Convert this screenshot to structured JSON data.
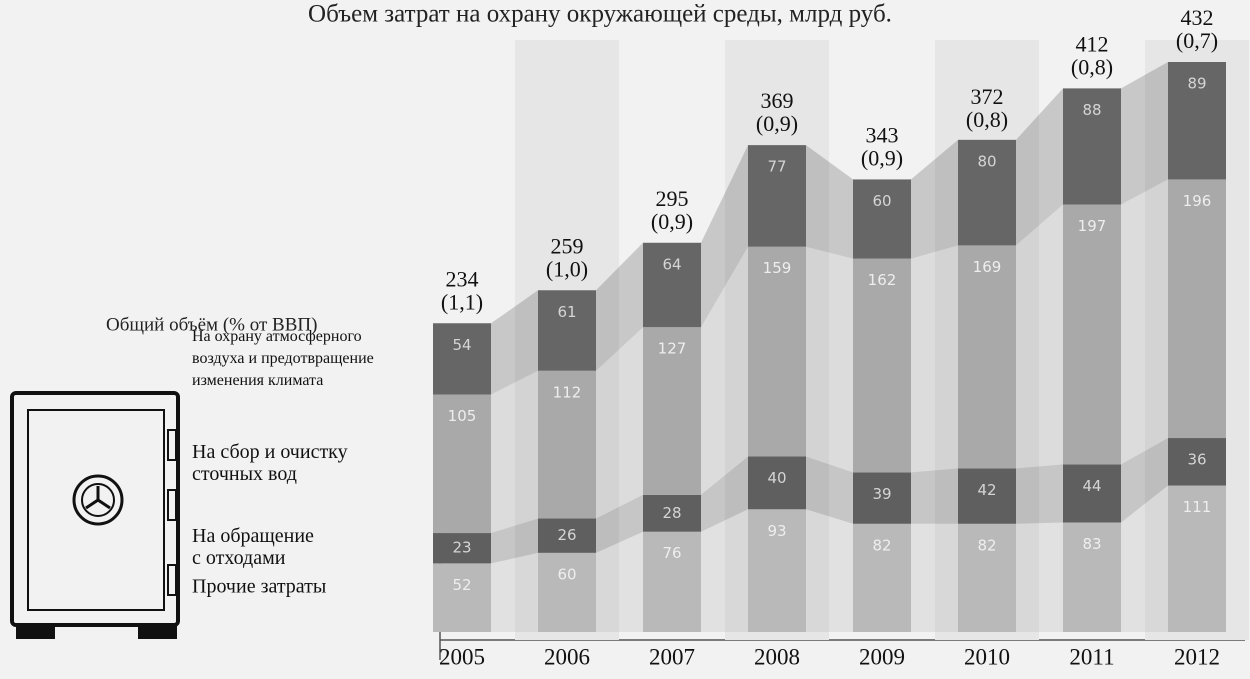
{
  "chart_data": {
    "type": "stacked_bar",
    "title": "Объем затрат на охрану окружающей среды, млрд руб.",
    "total_label": "Общий объём (% от ВВП)",
    "categories": [
      "2005",
      "2006",
      "2007",
      "2008",
      "2009",
      "2010",
      "2011",
      "2012"
    ],
    "series": [
      {
        "name": "Прочие затраты",
        "color": "#b9b9b9",
        "values": [
          52,
          60,
          76,
          93,
          82,
          82,
          83,
          111
        ]
      },
      {
        "name": "На обращение\nс отходами",
        "color": "#5f5f5f",
        "values": [
          23,
          26,
          28,
          40,
          39,
          42,
          44,
          36
        ]
      },
      {
        "name": "На сбор и очистку\nсточных вод",
        "color": "#a9a9a9",
        "values": [
          105,
          112,
          127,
          159,
          162,
          169,
          197,
          196
        ]
      },
      {
        "name": "На охрану атмосферного\nвоздуха и предотвращение\nизменения климата",
        "color": "#666666",
        "values": [
          54,
          61,
          64,
          77,
          60,
          80,
          88,
          89
        ]
      }
    ],
    "totals": [
      234,
      259,
      295,
      369,
      343,
      372,
      412,
      432
    ],
    "gdp_share": {
      "values": [
        1.1,
        1.0,
        0.9,
        0.9,
        0.9,
        0.8,
        0.8,
        0.7
      ],
      "value_labels": [
        "(1,1)",
        "(1,0)",
        "(0,9)",
        "(0,9)",
        "(0,9)",
        "(0,8)",
        "(0,8)",
        "(0,7)"
      ]
    }
  }
}
